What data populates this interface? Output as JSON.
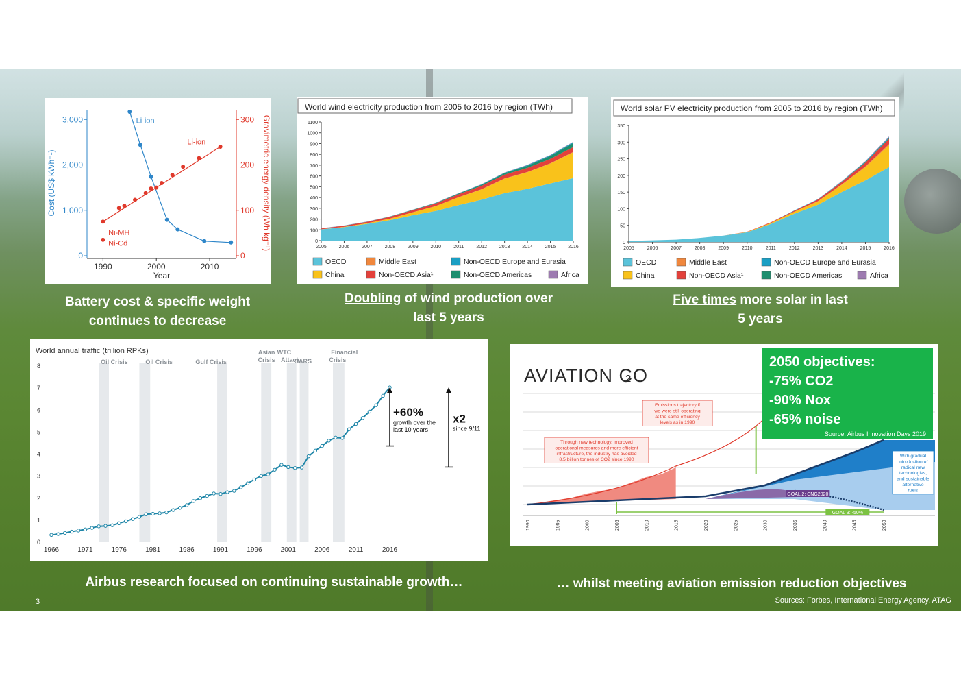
{
  "page_number": "3",
  "sources": "Sources: Forbes, International Energy Agency, ATAG",
  "captions": {
    "battery": "Battery cost & specific weight continues to decrease",
    "wind_underlined": "Doubling",
    "wind_rest": " of wind production over last 5 years",
    "solar_underlined": "Five times",
    "solar_rest": " more solar in last 5 years",
    "traffic": "Airbus research focused on continuing sustainable growth…",
    "aviation": "… whilst meeting aviation emission reduction objectives"
  },
  "objectives": {
    "title": "2050 objectives:",
    "co2": "-75% CO2",
    "nox": "-90% Nox",
    "noise": "-65% noise",
    "source": "Source: Airbus Innovation Days 2019"
  },
  "chart_data": [
    {
      "id": "battery",
      "type": "scatter",
      "title": "",
      "xlabel": "Year",
      "ylabel": "Cost (US$ kWh⁻¹)",
      "y2label": "Gravimetric energy density (Wh kg⁻¹)",
      "xlim": [
        1987,
        2015
      ],
      "ylim": [
        0,
        3200
      ],
      "y2lim": [
        0,
        320
      ],
      "xticks": [
        "1990",
        "2000",
        "2010"
      ],
      "yticks": [
        "0",
        "1,000",
        "2,000",
        "3,000"
      ],
      "y2ticks": [
        "0",
        "100",
        "200",
        "300"
      ],
      "series": [
        {
          "name": "Li-ion",
          "axis": "cost",
          "color": "#2e86c9",
          "x": [
            1995,
            1997,
            1999,
            2002,
            2004,
            2009,
            2014
          ],
          "y": [
            3170,
            2440,
            1740,
            790,
            580,
            320,
            290
          ]
        },
        {
          "name": "Li-ion",
          "axis": "density",
          "color": "#e0392b",
          "x": [
            1990,
            1993,
            1994,
            1996,
            1998,
            1999,
            2000,
            2001,
            2003,
            2005,
            2008,
            2012
          ],
          "y": [
            75,
            105,
            110,
            123,
            138,
            148,
            150,
            160,
            178,
            196,
            215,
            240
          ]
        },
        {
          "name": "Ni-MH",
          "axis": "density",
          "color": "#e0392b",
          "x": [
            1990
          ],
          "y": [
            35
          ]
        }
      ],
      "extra_label": "Ni-Cd"
    },
    {
      "id": "wind",
      "type": "area",
      "title": "World wind electricity production from 2005 to 2016 by region (TWh)",
      "x": [
        "2005",
        "2006",
        "2007",
        "2008",
        "2009",
        "2010",
        "2011",
        "2012",
        "2013",
        "2014",
        "2015",
        "2016"
      ],
      "ylim": [
        0,
        1100
      ],
      "yticks": [
        "0",
        "100",
        "200",
        "300",
        "400",
        "500",
        "600",
        "700",
        "800",
        "900",
        "1000",
        "1100"
      ],
      "series": [
        {
          "name": "OECD",
          "color": "#5bc3da",
          "values": [
            105,
            125,
            155,
            190,
            235,
            275,
            330,
            380,
            440,
            480,
            530,
            580
          ]
        },
        {
          "name": "China",
          "color": "#f9c21b",
          "values": [
            1,
            3,
            6,
            13,
            27,
            45,
            72,
            95,
            135,
            155,
            185,
            240
          ]
        },
        {
          "name": "Middle East",
          "color": "#f0873d",
          "values": [
            0,
            0,
            0,
            1,
            1,
            1,
            1,
            2,
            2,
            2,
            2,
            3
          ]
        },
        {
          "name": "Non-OECD Asia¹",
          "color": "#e3413b",
          "values": [
            7,
            10,
            13,
            17,
            20,
            23,
            27,
            32,
            35,
            38,
            41,
            45
          ]
        },
        {
          "name": "Non-OECD Europe and Eurasia",
          "color": "#1a9fc4",
          "values": [
            1,
            1,
            1,
            1,
            1,
            1,
            2,
            3,
            4,
            5,
            6,
            7
          ]
        },
        {
          "name": "Non-OECD Americas",
          "color": "#1e8e6f",
          "values": [
            0,
            1,
            1,
            2,
            3,
            5,
            7,
            10,
            14,
            20,
            28,
            38
          ]
        },
        {
          "name": "Africa",
          "color": "#9d7bb0",
          "values": [
            1,
            1,
            1,
            1,
            1,
            2,
            2,
            2,
            2,
            3,
            3,
            4
          ]
        }
      ]
    },
    {
      "id": "solar",
      "type": "area",
      "title": "World solar PV electricity production from 2005 to 2016 by region (TWh)",
      "x": [
        "2005",
        "2006",
        "2007",
        "2008",
        "2009",
        "2010",
        "2011",
        "2012",
        "2013",
        "2014",
        "2015",
        "2016"
      ],
      "ylim": [
        0,
        350
      ],
      "yticks": [
        "0",
        "50",
        "100",
        "150",
        "200",
        "250",
        "300",
        "350"
      ],
      "series": [
        {
          "name": "OECD",
          "color": "#5bc3da",
          "values": [
            3,
            5,
            7,
            12,
            19,
            29,
            54,
            85,
            112,
            150,
            185,
            225
          ]
        },
        {
          "name": "China",
          "color": "#f9c21b",
          "values": [
            0,
            0,
            0,
            0,
            0,
            1,
            3,
            6,
            10,
            22,
            40,
            66
          ]
        },
        {
          "name": "Middle East",
          "color": "#f0873d",
          "values": [
            0,
            0,
            0,
            0,
            0,
            0,
            0,
            0,
            1,
            1,
            2,
            3
          ]
        },
        {
          "name": "Non-OECD Asia¹",
          "color": "#e3413b",
          "values": [
            0,
            0,
            0,
            0,
            0,
            1,
            2,
            3,
            5,
            7,
            11,
            16
          ]
        },
        {
          "name": "Non-OECD Europe and Eurasia",
          "color": "#1a9fc4",
          "values": [
            0,
            0,
            0,
            0,
            0,
            0,
            0,
            1,
            1,
            1,
            2,
            2
          ]
        },
        {
          "name": "Non-OECD Americas",
          "color": "#1e8e6f",
          "values": [
            0,
            0,
            0,
            0,
            0,
            0,
            0,
            0,
            0,
            1,
            2,
            3
          ]
        },
        {
          "name": "Africa",
          "color": "#9d7bb0",
          "values": [
            0,
            0,
            0,
            0,
            0,
            0,
            0,
            0,
            0,
            1,
            1,
            2
          ]
        }
      ]
    },
    {
      "id": "traffic",
      "type": "line",
      "title": "World annual traffic (trillion RPKs)",
      "xlim": [
        1966,
        2016
      ],
      "ylim": [
        0,
        8
      ],
      "xticks": [
        "1966",
        "1971",
        "1976",
        "1981",
        "1986",
        "1991",
        "1996",
        "2001",
        "2006",
        "2011",
        "2016"
      ],
      "yticks": [
        "0",
        "1",
        "2",
        "3",
        "4",
        "5",
        "6",
        "7",
        "8"
      ],
      "x": [
        1966,
        1967,
        1968,
        1969,
        1970,
        1971,
        1972,
        1973,
        1974,
        1975,
        1976,
        1977,
        1978,
        1979,
        1980,
        1981,
        1982,
        1983,
        1984,
        1985,
        1986,
        1987,
        1988,
        1989,
        1990,
        1991,
        1992,
        1993,
        1994,
        1995,
        1996,
        1997,
        1998,
        1999,
        2000,
        2001,
        2002,
        2003,
        2004,
        2005,
        2006,
        2007,
        2008,
        2009,
        2010,
        2011,
        2012,
        2013,
        2014,
        2015,
        2016
      ],
      "values": [
        0.3,
        0.34,
        0.39,
        0.45,
        0.5,
        0.55,
        0.62,
        0.69,
        0.71,
        0.74,
        0.83,
        0.92,
        1.02,
        1.12,
        1.24,
        1.26,
        1.28,
        1.32,
        1.43,
        1.53,
        1.65,
        1.84,
        1.97,
        2.07,
        2.18,
        2.16,
        2.24,
        2.3,
        2.46,
        2.64,
        2.82,
        2.98,
        3.05,
        3.26,
        3.48,
        3.38,
        3.34,
        3.36,
        3.87,
        4.13,
        4.34,
        4.58,
        4.72,
        4.7,
        5.1,
        5.34,
        5.61,
        5.9,
        6.19,
        6.62,
        7.0
      ],
      "shaded": [
        {
          "label": "Oil Crisis",
          "x0": 1973,
          "x1": 1974.5
        },
        {
          "label": "Oil Crisis",
          "x0": 1979,
          "x1": 1980.6
        },
        {
          "label": "Gulf Crisis",
          "x0": 1990.5,
          "x1": 1992
        },
        {
          "label": "Asian Crisis",
          "x0": 1997,
          "x1": 1998.5
        },
        {
          "label": "WTC Attack",
          "x0": 2000.8,
          "x1": 2002.2
        },
        {
          "label": "SARS",
          "x0": 2002.7,
          "x1": 2004
        },
        {
          "label": "Financial Crisis",
          "x0": 2007.6,
          "x1": 2009.3
        }
      ],
      "annotations": {
        "growth_value": "+60%",
        "growth_text": "growth over the last 10 years",
        "x2_value": "x2",
        "x2_text": "since 9/11"
      }
    },
    {
      "id": "aviation",
      "type": "area",
      "title": "AVIATION CO2",
      "xticks": [
        "1990",
        "1995",
        "2000",
        "2005",
        "2010",
        "2015",
        "2020",
        "2025",
        "2030",
        "2035",
        "2040",
        "2045",
        "2050"
      ],
      "annotations": {
        "trajectory": "Emissions trajectory if we were still operating at the same efficiency levels as in 1990",
        "avoided": "Through new technology, improved operational measures and more efficient infrastructure, the industry has avoided 8.5 billion tonnes of CO2 since 1990",
        "gradual": "With gradual introduction of radical new technologies, and sustainable alternative fuels",
        "goal2": "GOAL 2: CNG2020",
        "goal3": "GOAL 3: -50%"
      }
    }
  ]
}
